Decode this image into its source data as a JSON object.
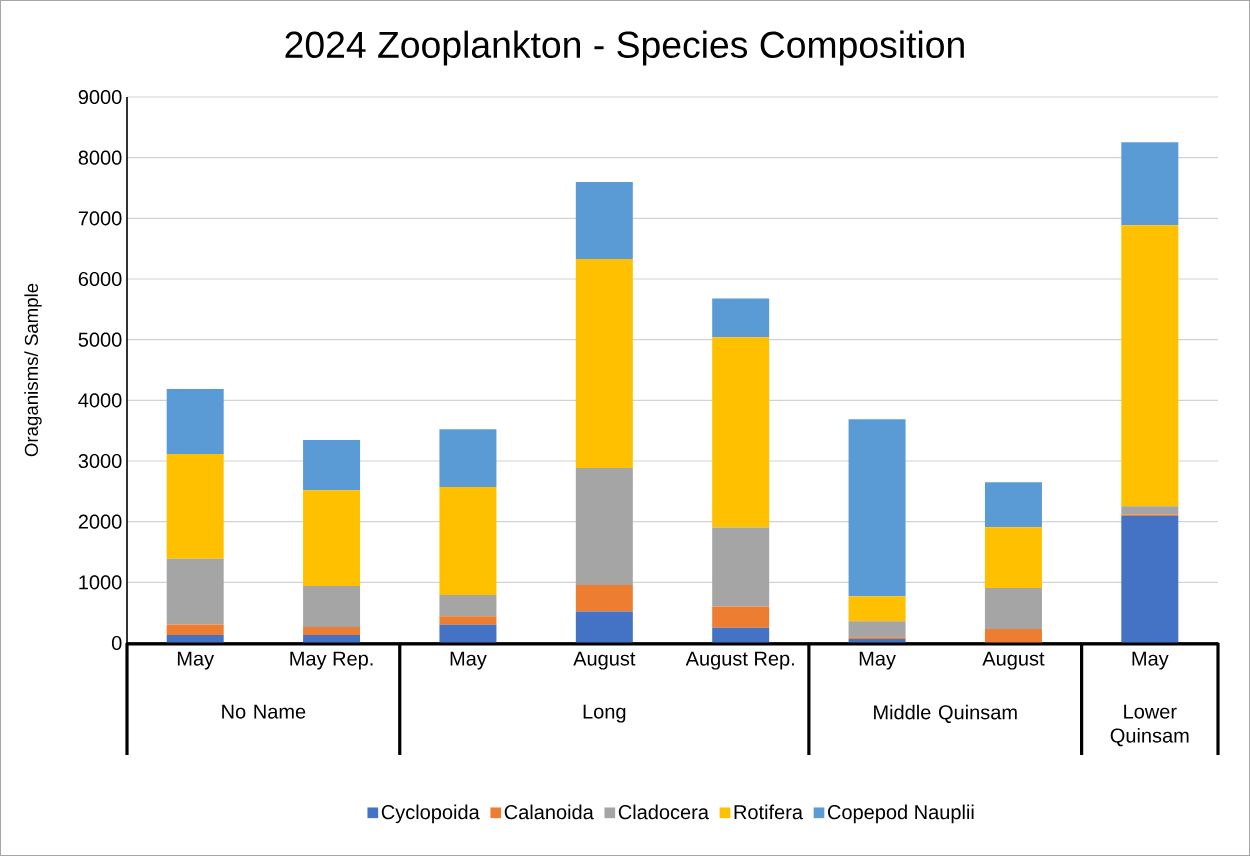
{
  "chart_data": {
    "type": "bar",
    "stacked": true,
    "title": "2024 Zooplankton - Species Composition",
    "ylabel": "Oraganisms/ Sample",
    "categories": [
      "May",
      "May Rep.",
      "May",
      "August",
      "August Rep.",
      "May",
      "August",
      "May"
    ],
    "annotations": [
      "No Name",
      "Long",
      "Middle Quinsam",
      "Lower Quinsam"
    ],
    "series": [
      {
        "name": "Cyclopoida",
        "color": "#4472c4",
        "values": [
          130,
          130,
          300,
          520,
          250,
          65,
          0,
          2095
        ]
      },
      {
        "name": "Calanoida",
        "color": "#ed7d31",
        "values": [
          175,
          135,
          140,
          435,
          350,
          30,
          230,
          20
        ]
      },
      {
        "name": "Cladocera",
        "color": "#a5a5a5",
        "values": [
          1085,
          675,
          350,
          1930,
          1305,
          265,
          675,
          140
        ]
      },
      {
        "name": "Rotifera",
        "color": "#ffc000",
        "values": [
          1725,
          1580,
          1780,
          3445,
          3135,
          410,
          1005,
          4630
        ]
      },
      {
        "name": "Copepod Nauplii",
        "color": "#5b9bd5",
        "values": [
          1070,
          825,
          955,
          1270,
          640,
          2920,
          740,
          1370
        ]
      }
    ],
    "ylim": [
      0,
      9000
    ],
    "yticks": [
      0,
      1000,
      2000,
      3000,
      4000,
      5000,
      6000,
      7000,
      8000,
      9000
    ],
    "grid": "y",
    "legend": "bottom"
  }
}
